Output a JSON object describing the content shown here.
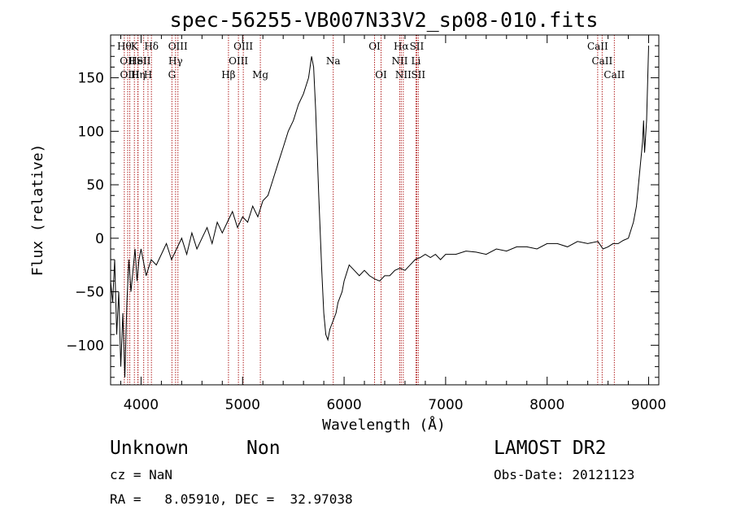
{
  "chart_data": {
    "type": "line",
    "title": "spec-56255-VB007N33V2_sp08-010.fits",
    "xlabel": "Wavelength (Å)",
    "ylabel": "Flux (relative)",
    "xlim": [
      3700,
      9100
    ],
    "ylim": [
      -137,
      190
    ],
    "xticks": [
      {
        "value": 4000,
        "label": "4000"
      },
      {
        "value": 5000,
        "label": "5000"
      },
      {
        "value": 6000,
        "label": "6000"
      },
      {
        "value": 7000,
        "label": "7000"
      },
      {
        "value": 8000,
        "label": "8000"
      },
      {
        "value": 9000,
        "label": "9000"
      }
    ],
    "yticks": [
      {
        "value": -100,
        "label": "−100"
      },
      {
        "value": -50,
        "label": "−50"
      },
      {
        "value": 0,
        "label": "0"
      },
      {
        "value": 50,
        "label": "50"
      },
      {
        "value": 100,
        "label": "100"
      },
      {
        "value": 150,
        "label": "150"
      }
    ],
    "grid": false,
    "line_color": "#000000",
    "marker_color": "#b22222",
    "series": [
      {
        "x": [
          3700,
          3720,
          3740,
          3760,
          3780,
          3800,
          3820,
          3840,
          3860,
          3880,
          3900,
          3920,
          3940,
          3960,
          3980,
          4000,
          4050,
          4100,
          4150,
          4200,
          4250,
          4300,
          4350,
          4400,
          4450,
          4500,
          4550,
          4600,
          4650,
          4700,
          4750,
          4800,
          4850,
          4900,
          4950,
          5000,
          5050,
          5100,
          5150,
          5200,
          5250,
          5300,
          5350,
          5400,
          5450,
          5500,
          5550,
          5600,
          5650,
          5680,
          5700,
          5720,
          5750,
          5780,
          5800,
          5820,
          5840,
          5860,
          5880,
          5900,
          5920,
          5940,
          5960,
          5980,
          6000,
          6050,
          6100,
          6150,
          6200,
          6250,
          6300,
          6350,
          6400,
          6450,
          6500,
          6550,
          6600,
          6650,
          6700,
          6750,
          6800,
          6850,
          6900,
          6950,
          7000,
          7100,
          7200,
          7300,
          7400,
          7500,
          7600,
          7700,
          7800,
          7900,
          8000,
          8100,
          8200,
          8300,
          8400,
          8500,
          8550,
          8600,
          8650,
          8700,
          8750,
          8800,
          8850,
          8880,
          8900,
          8920,
          8940,
          8950,
          8960,
          8980,
          9000
        ],
        "y": [
          -40,
          -60,
          -20,
          -90,
          -50,
          -120,
          -70,
          -130,
          -60,
          -20,
          -50,
          -30,
          -10,
          -40,
          -20,
          -10,
          -35,
          -20,
          -25,
          -15,
          -5,
          -20,
          -10,
          0,
          -15,
          5,
          -10,
          0,
          10,
          -5,
          15,
          5,
          15,
          25,
          10,
          20,
          15,
          30,
          20,
          35,
          40,
          55,
          70,
          85,
          100,
          110,
          125,
          135,
          150,
          170,
          160,
          120,
          40,
          -30,
          -70,
          -90,
          -95,
          -85,
          -80,
          -75,
          -70,
          -60,
          -55,
          -50,
          -40,
          -25,
          -30,
          -35,
          -30,
          -35,
          -38,
          -40,
          -35,
          -35,
          -30,
          -28,
          -30,
          -25,
          -20,
          -18,
          -15,
          -18,
          -15,
          -20,
          -15,
          -15,
          -12,
          -13,
          -15,
          -10,
          -12,
          -8,
          -8,
          -10,
          -5,
          -5,
          -8,
          -3,
          -5,
          -3,
          -10,
          -8,
          -5,
          -5,
          -2,
          0,
          15,
          30,
          50,
          70,
          90,
          110,
          80,
          110,
          180
        ]
      }
    ],
    "line_markers": [
      {
        "x": 3835,
        "label": "Hθ",
        "row": 0
      },
      {
        "x": 3868,
        "label": "OII",
        "row": 1
      },
      {
        "x": 3889,
        "label": "OIII",
        "row": 2
      },
      {
        "x": 3934,
        "label": "K",
        "row": 0
      },
      {
        "x": 3970,
        "label": "Hη",
        "row": 2
      },
      {
        "x": 3968,
        "label": "HeI",
        "row": 1
      },
      {
        "x": 4026,
        "label": "SII",
        "row": 1
      },
      {
        "x": 4068,
        "label": "H",
        "row": 2
      },
      {
        "x": 4102,
        "label": "Hδ",
        "row": 0
      },
      {
        "x": 4304,
        "label": "G",
        "row": 2
      },
      {
        "x": 4340,
        "label": "Hγ",
        "row": 1
      },
      {
        "x": 4363,
        "label": "OIII",
        "row": 0
      },
      {
        "x": 4861,
        "label": "Hβ",
        "row": 2
      },
      {
        "x": 4959,
        "label": "OIII",
        "row": 1
      },
      {
        "x": 5007,
        "label": "OIII",
        "row": 0
      },
      {
        "x": 5175,
        "label": "Mg",
        "row": 2
      },
      {
        "x": 5893,
        "label": "Na",
        "row": 1
      },
      {
        "x": 6300,
        "label": "OI",
        "row": 0
      },
      {
        "x": 6364,
        "label": "OI",
        "row": 2
      },
      {
        "x": 6548,
        "label": "NII",
        "row": 1
      },
      {
        "x": 6563,
        "label": "Hα",
        "row": 0
      },
      {
        "x": 6583,
        "label": "NII",
        "row": 2
      },
      {
        "x": 6708,
        "label": "Li",
        "row": 1
      },
      {
        "x": 6716,
        "label": "SII",
        "row": 0
      },
      {
        "x": 6731,
        "label": "SII",
        "row": 2
      },
      {
        "x": 8498,
        "label": "CaII",
        "row": 0
      },
      {
        "x": 8542,
        "label": "CaII",
        "row": 1
      },
      {
        "x": 8662,
        "label": "CaII",
        "row": 2
      }
    ]
  },
  "info": {
    "class": "Unknown",
    "subclass": "Non",
    "cz": "cz = NaN",
    "coords": "RA =   8.05910, DEC =  32.97038",
    "survey": "LAMOST DR2",
    "obs_date": "Obs-Date: 20121123"
  }
}
